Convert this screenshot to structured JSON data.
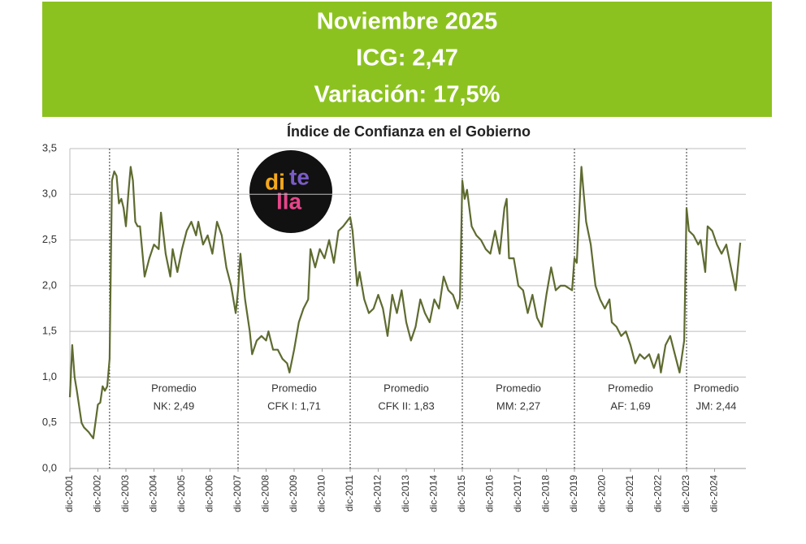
{
  "header": {
    "lines": [
      "Noviembre 2025",
      "ICG: 2,47",
      "Variación: 17,5%"
    ]
  },
  "logo": {
    "parts": [
      "di",
      "te",
      "lla"
    ]
  },
  "chart_data": {
    "type": "line",
    "title": "Índice de Confianza en el Gobierno",
    "color": "#5e6b30",
    "grid": true,
    "x": [
      "2001-12",
      "2002-01",
      "2002-02",
      "2002-03",
      "2002-05",
      "2002-06",
      "2002-08",
      "2002-10",
      "2002-12",
      "2003-01",
      "2003-02",
      "2003-03",
      "2003-04",
      "2003-05",
      "2003-06",
      "2003-07",
      "2003-08",
      "2003-09",
      "2003-10",
      "2003-11",
      "2003-12",
      "2004-01",
      "2004-02",
      "2004-03",
      "2004-04",
      "2004-05",
      "2004-06",
      "2004-08",
      "2004-10",
      "2004-12",
      "2005-02",
      "2005-03",
      "2005-05",
      "2005-07",
      "2005-08",
      "2005-10",
      "2005-12",
      "2006-02",
      "2006-04",
      "2006-06",
      "2006-07",
      "2006-09",
      "2006-11",
      "2007-01",
      "2007-03",
      "2007-05",
      "2007-07",
      "2007-09",
      "2007-11",
      "2007-12",
      "2008-01",
      "2008-03",
      "2008-05",
      "2008-06",
      "2008-08",
      "2008-10",
      "2008-12",
      "2009-01",
      "2009-03",
      "2009-05",
      "2009-07",
      "2009-09",
      "2009-10",
      "2009-12",
      "2010-02",
      "2010-04",
      "2010-06",
      "2010-07",
      "2010-09",
      "2010-11",
      "2011-01",
      "2011-03",
      "2011-05",
      "2011-07",
      "2011-09",
      "2011-12",
      "2012-01",
      "2012-03",
      "2012-04",
      "2012-06",
      "2012-08",
      "2012-10",
      "2012-12",
      "2013-02",
      "2013-04",
      "2013-06",
      "2013-08",
      "2013-10",
      "2013-12",
      "2014-02",
      "2014-04",
      "2014-06",
      "2014-08",
      "2014-10",
      "2014-12",
      "2015-02",
      "2015-04",
      "2015-06",
      "2015-08",
      "2015-10",
      "2015-11",
      "2015-12",
      "2016-01",
      "2016-02",
      "2016-04",
      "2016-06",
      "2016-08",
      "2016-10",
      "2016-12",
      "2017-02",
      "2017-04",
      "2017-06",
      "2017-07",
      "2017-08",
      "2017-10",
      "2017-12",
      "2018-02",
      "2018-04",
      "2018-06",
      "2018-08",
      "2018-10",
      "2018-12",
      "2019-02",
      "2019-04",
      "2019-06",
      "2019-08",
      "2019-11",
      "2019-12",
      "2020-01",
      "2020-03",
      "2020-05",
      "2020-07",
      "2020-09",
      "2020-11",
      "2021-01",
      "2021-03",
      "2021-04",
      "2021-06",
      "2021-08",
      "2021-10",
      "2021-12",
      "2022-02",
      "2022-04",
      "2022-06",
      "2022-08",
      "2022-10",
      "2022-12",
      "2023-01",
      "2023-03",
      "2023-05",
      "2023-07",
      "2023-09",
      "2023-11",
      "2023-12",
      "2024-01",
      "2024-03",
      "2024-05",
      "2024-06",
      "2024-08",
      "2024-09",
      "2024-11",
      "2025-01",
      "2025-03",
      "2025-05",
      "2025-07",
      "2025-09",
      "2025-11"
    ],
    "values": [
      0.78,
      1.35,
      1.0,
      0.85,
      0.5,
      0.45,
      0.4,
      0.33,
      0.7,
      0.72,
      0.9,
      0.85,
      0.9,
      1.2,
      3.15,
      3.25,
      3.2,
      2.9,
      2.95,
      2.85,
      2.65,
      3.0,
      3.3,
      3.15,
      2.7,
      2.65,
      2.65,
      2.1,
      2.3,
      2.45,
      2.4,
      2.8,
      2.35,
      2.1,
      2.4,
      2.15,
      2.4,
      2.6,
      2.7,
      2.55,
      2.7,
      2.45,
      2.55,
      2.35,
      2.7,
      2.55,
      2.2,
      2.0,
      1.7,
      1.95,
      2.35,
      1.85,
      1.5,
      1.25,
      1.4,
      1.45,
      1.4,
      1.5,
      1.3,
      1.3,
      1.2,
      1.15,
      1.05,
      1.3,
      1.6,
      1.75,
      1.85,
      2.4,
      2.2,
      2.4,
      2.3,
      2.5,
      2.25,
      2.6,
      2.65,
      2.75,
      2.6,
      2.0,
      2.15,
      1.85,
      1.7,
      1.75,
      1.9,
      1.75,
      1.45,
      1.9,
      1.7,
      1.95,
      1.6,
      1.4,
      1.55,
      1.85,
      1.7,
      1.6,
      1.85,
      1.75,
      2.1,
      1.95,
      1.9,
      1.75,
      1.85,
      3.15,
      2.95,
      3.05,
      2.65,
      2.55,
      2.5,
      2.4,
      2.35,
      2.6,
      2.35,
      2.85,
      2.95,
      2.3,
      2.3,
      2.0,
      1.95,
      1.7,
      1.9,
      1.65,
      1.55,
      1.9,
      2.2,
      1.95,
      2.0,
      2.0,
      1.95,
      2.3,
      2.25,
      3.3,
      2.7,
      2.45,
      2.0,
      1.85,
      1.75,
      1.85,
      1.6,
      1.55,
      1.45,
      1.5,
      1.35,
      1.15,
      1.25,
      1.2,
      1.25,
      1.1,
      1.25,
      1.05,
      1.35,
      1.45,
      1.25,
      1.05,
      1.4,
      2.85,
      2.6,
      2.55,
      2.45,
      2.5,
      2.15,
      2.65,
      2.6,
      2.45,
      2.35,
      2.45,
      2.2,
      1.95,
      2.47
    ],
    "xlim": [
      "2001-12",
      "2025-12"
    ],
    "xticks": [
      {
        "value": "2001-12",
        "label": "dic-2001"
      },
      {
        "value": "2002-12",
        "label": "dic-2002"
      },
      {
        "value": "2003-12",
        "label": "dic-2003"
      },
      {
        "value": "2004-12",
        "label": "dic-2004"
      },
      {
        "value": "2005-12",
        "label": "dic-2005"
      },
      {
        "value": "2006-12",
        "label": "dic-2006"
      },
      {
        "value": "2007-12",
        "label": "dic-2007"
      },
      {
        "value": "2008-12",
        "label": "dic-2008"
      },
      {
        "value": "2009-12",
        "label": "dic-2009"
      },
      {
        "value": "2010-12",
        "label": "dic-2010"
      },
      {
        "value": "2011-12",
        "label": "dic-2011"
      },
      {
        "value": "2012-12",
        "label": "dic-2012"
      },
      {
        "value": "2013-12",
        "label": "dic-2013"
      },
      {
        "value": "2014-12",
        "label": "dic-2014"
      },
      {
        "value": "2015-12",
        "label": "dic-2015"
      },
      {
        "value": "2016-12",
        "label": "dic-2016"
      },
      {
        "value": "2017-12",
        "label": "dic-2017"
      },
      {
        "value": "2018-12",
        "label": "dic-2018"
      },
      {
        "value": "2019-12",
        "label": "dic-2019"
      },
      {
        "value": "2020-12",
        "label": "dic-2020"
      },
      {
        "value": "2021-12",
        "label": "dic-2021"
      },
      {
        "value": "2022-12",
        "label": "dic-2022"
      },
      {
        "value": "2023-12",
        "label": "dic-2023"
      },
      {
        "value": "2024-12",
        "label": "dic-2024"
      }
    ],
    "ylim": [
      0,
      3.5
    ],
    "yticks": [
      {
        "value": 0,
        "label": "0,0"
      },
      {
        "value": 0.5,
        "label": "0,5"
      },
      {
        "value": 1,
        "label": "1,0"
      },
      {
        "value": 1.5,
        "label": "1,5"
      },
      {
        "value": 2,
        "label": "2,0"
      },
      {
        "value": 2.5,
        "label": "2,5"
      },
      {
        "value": 3,
        "label": "3,0"
      },
      {
        "value": 3.5,
        "label": "3,5"
      }
    ],
    "period_starts": [
      "2003-05",
      "2007-12",
      "2011-12",
      "2015-12",
      "2019-12",
      "2023-12"
    ],
    "annotations": [
      [
        "Promedio",
        "NK: 2,49"
      ],
      [
        "Promedio",
        "CFK I: 1,71"
      ],
      [
        "Promedio",
        "CFK II: 1,83"
      ],
      [
        "Promedio",
        "MM: 2,27"
      ],
      [
        "Promedio",
        "AF: 1,69"
      ],
      [
        "Promedio",
        "JM: 2,44"
      ]
    ]
  }
}
